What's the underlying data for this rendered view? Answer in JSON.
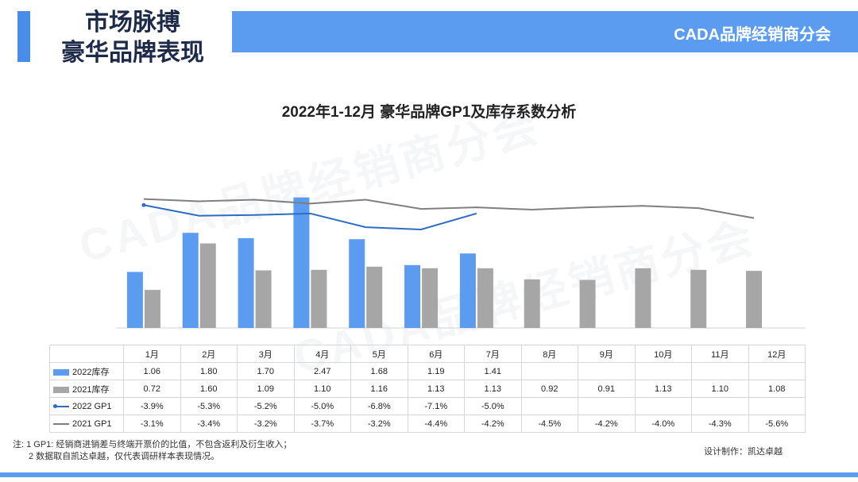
{
  "header": {
    "title_line1": "市场脉搏",
    "title_line2": "豪华品牌表现",
    "brand": "CADA品牌经销商分会"
  },
  "watermark_text": "CADA品牌经销商分会",
  "colors": {
    "accent_blue": "#5b9cf0",
    "bar_2022": "#5b9cf0",
    "bar_2021": "#a6a6a6",
    "line_2022": "#2e6bc4",
    "line_2021": "#7f7f7f",
    "title_dark": "#1e2a4a"
  },
  "chart_data": {
    "type": "bar",
    "title": "2022年1-12月 豪华品牌GP1及库存系数分析",
    "categories": [
      "1月",
      "2月",
      "3月",
      "4月",
      "5月",
      "6月",
      "7月",
      "8月",
      "9月",
      "10月",
      "11月",
      "12月"
    ],
    "series": [
      {
        "name": "2022库存",
        "kind": "bar",
        "values": [
          1.06,
          1.8,
          1.7,
          2.47,
          1.68,
          1.19,
          1.41,
          null,
          null,
          null,
          null,
          null
        ],
        "labels": [
          "1.06",
          "1.80",
          "1.70",
          "2.47",
          "1.68",
          "1.19",
          "1.41",
          "",
          "",
          "",
          "",
          ""
        ]
      },
      {
        "name": "2021库存",
        "kind": "bar",
        "values": [
          0.72,
          1.6,
          1.09,
          1.1,
          1.16,
          1.13,
          1.13,
          0.92,
          0.91,
          1.13,
          1.1,
          1.08
        ],
        "labels": [
          "0.72",
          "1.60",
          "1.09",
          "1.10",
          "1.16",
          "1.13",
          "1.13",
          "0.92",
          "0.91",
          "1.13",
          "1.10",
          "1.08"
        ]
      },
      {
        "name": "2022 GP1",
        "kind": "line",
        "values": [
          -3.9,
          -5.3,
          -5.2,
          -5.0,
          -6.8,
          -7.1,
          -5.0,
          null,
          null,
          null,
          null,
          null
        ],
        "labels": [
          "-3.9%",
          "-5.3%",
          "-5.2%",
          "-5.0%",
          "-6.8%",
          "-7.1%",
          "-5.0%",
          "",
          "",
          "",
          "",
          ""
        ]
      },
      {
        "name": "2021 GP1",
        "kind": "line",
        "values": [
          -3.1,
          -3.4,
          -3.2,
          -3.7,
          -3.2,
          -4.4,
          -4.2,
          -4.5,
          -4.2,
          -4.0,
          -4.3,
          -5.6
        ],
        "labels": [
          "-3.1%",
          "-3.4%",
          "-3.2%",
          "-3.7%",
          "-3.2%",
          "-4.4%",
          "-4.2%",
          "-4.5%",
          "-4.2%",
          "-4.0%",
          "-4.3%",
          "-5.6%"
        ]
      }
    ],
    "bar_axis_range": [
      0,
      2.6
    ],
    "line_axis_range": [
      -20,
      -2
    ],
    "grid": false,
    "legend": "data-table-below"
  },
  "notes": {
    "line1": "注: 1 GP1: 经销商进销差与终端开票价的比值，不包含返利及衍生收入；",
    "line2": "2 数据取自凯达卓越，仅代表调研样本表现情况。"
  },
  "credit": "设计制作：凯达卓越"
}
